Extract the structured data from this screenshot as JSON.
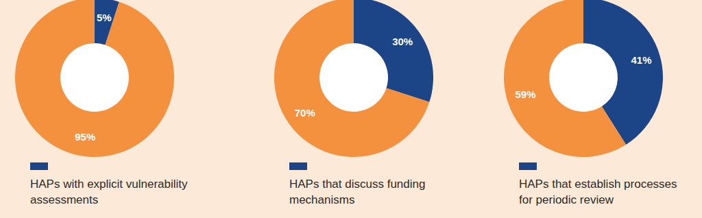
{
  "chart_data": [
    {
      "type": "donut",
      "categories": [
        "HAPs with explicit vulnerability assessments",
        null
      ],
      "values": [
        5,
        95
      ],
      "value_labels": [
        "5%",
        "95%"
      ],
      "colors": [
        "#1b4587",
        "#f4913f"
      ],
      "data_labels": true
    },
    {
      "type": "donut",
      "categories": [
        "HAPs that discuss funding mechanisms",
        null
      ],
      "values": [
        30,
        70
      ],
      "value_labels": [
        "30%",
        "70%"
      ],
      "colors": [
        "#1b4587",
        "#f4913f"
      ],
      "data_labels": true
    },
    {
      "type": "donut",
      "categories": [
        "HAPs that establish processes for periodic review",
        null
      ],
      "values": [
        41,
        59
      ],
      "value_labels": [
        "41%",
        "59%"
      ],
      "colors": [
        "#1b4587",
        "#f4913f"
      ],
      "data_labels": true
    }
  ]
}
